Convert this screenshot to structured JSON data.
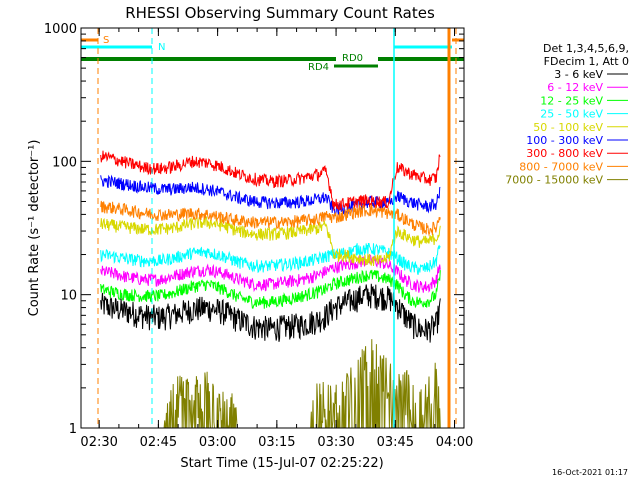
{
  "chart_data": {
    "type": "line",
    "title": "RHESSI Observing Summary Count Rates",
    "xlabel": "Start Time (15-Jul-07 02:25:22)",
    "ylabel": "Count Rate (s⁻¹ detector⁻¹)",
    "yscale": "log",
    "ylim": [
      1,
      1000
    ],
    "xlim_minutes": [
      0,
      97
    ],
    "x_tick_labels": [
      "02:30",
      "02:45",
      "03:00",
      "03:15",
      "03:30",
      "03:45",
      "04:00"
    ],
    "x_tick_minutes": [
      4.6,
      19.6,
      34.6,
      49.6,
      64.6,
      79.6,
      94.6
    ],
    "y_tick_labels": [
      "1",
      "10",
      "100",
      "1000"
    ],
    "y_tick_values": [
      1,
      10,
      100,
      1000
    ],
    "legend_title": [
      "Det 1,3,4,5,6,9,",
      "FDecim 1, Att 0"
    ],
    "legend_position": "right",
    "series": [
      {
        "name": "3 - 6 keV",
        "color": "#000000",
        "x": [
          5,
          8,
          12,
          16,
          20,
          24,
          28,
          32,
          36,
          40,
          44,
          48,
          52,
          56,
          60,
          62,
          64,
          66,
          68,
          70,
          72,
          74,
          76,
          78,
          80,
          82,
          84,
          86,
          88,
          90,
          91
        ],
        "values": [
          8.5,
          8,
          7.5,
          7,
          6.8,
          7.2,
          7.8,
          8,
          7.5,
          6.5,
          5.8,
          5.6,
          5.8,
          6,
          6.5,
          7,
          8,
          8.5,
          9,
          9.5,
          10,
          10,
          9.8,
          9.5,
          8.5,
          7,
          6,
          5.5,
          5.5,
          6,
          8
        ]
      },
      {
        "name": "6 - 12 keV",
        "color": "#ff00ff",
        "x": [
          5,
          8,
          12,
          16,
          20,
          24,
          28,
          32,
          36,
          40,
          44,
          48,
          52,
          56,
          60,
          62,
          64,
          66,
          68,
          70,
          72,
          74,
          76,
          78,
          80,
          82,
          84,
          86,
          88,
          90,
          91
        ],
        "values": [
          15,
          14.5,
          13.5,
          13,
          13,
          14,
          15,
          15.5,
          14.5,
          13,
          12,
          12,
          12.5,
          13,
          14,
          15,
          16,
          16.5,
          17,
          17.5,
          18,
          18,
          17.5,
          16.5,
          15,
          13,
          12,
          11.5,
          11.5,
          13,
          17
        ]
      },
      {
        "name": "12 - 25 keV",
        "color": "#00ff00",
        "x": [
          5,
          8,
          12,
          16,
          20,
          24,
          28,
          32,
          36,
          40,
          44,
          48,
          52,
          56,
          60,
          62,
          64,
          66,
          68,
          70,
          72,
          74,
          76,
          78,
          80,
          82,
          84,
          86,
          88,
          90,
          91
        ],
        "values": [
          11,
          10.5,
          10,
          9.8,
          9.8,
          10.5,
          11.5,
          12,
          11,
          9.5,
          8.8,
          8.8,
          9.2,
          9.8,
          10.5,
          11,
          12,
          12.5,
          13,
          13.5,
          14,
          14,
          13.5,
          13,
          12,
          10,
          9,
          8.8,
          9,
          10,
          14
        ]
      },
      {
        "name": "25 - 50 keV",
        "color": "#00ffff",
        "x": [
          5,
          8,
          12,
          16,
          20,
          24,
          28,
          32,
          36,
          40,
          44,
          48,
          52,
          56,
          60,
          62,
          64,
          66,
          68,
          70,
          72,
          74,
          76,
          78,
          80,
          82,
          84,
          86,
          88,
          90,
          91
        ],
        "values": [
          20,
          19.5,
          18.5,
          18,
          18,
          19,
          20.5,
          21,
          19.5,
          17.5,
          16.5,
          16.5,
          17,
          17.5,
          18.5,
          19.5,
          20,
          20.5,
          21,
          22,
          22,
          22,
          21.5,
          20.5,
          19,
          17,
          16,
          15.5,
          16,
          18,
          24
        ]
      },
      {
        "name": "50 - 100 keV",
        "color": "#d8d800",
        "x": [
          5,
          8,
          12,
          16,
          20,
          24,
          28,
          32,
          36,
          40,
          44,
          48,
          52,
          56,
          60,
          62,
          64,
          66,
          68,
          70,
          72,
          74,
          76,
          78,
          80,
          82,
          84,
          86,
          88,
          90,
          91
        ],
        "values": [
          34,
          33,
          32,
          31,
          31,
          32,
          34,
          35,
          33,
          30,
          28.5,
          28.5,
          29,
          30,
          31.5,
          33,
          20,
          20,
          19.5,
          19,
          18.5,
          18,
          18,
          19,
          30,
          28,
          26,
          25,
          25,
          27,
          30
        ]
      },
      {
        "name": "100 - 300 keV",
        "color": "#0000ff",
        "x": [
          5,
          8,
          12,
          16,
          20,
          24,
          28,
          32,
          36,
          40,
          44,
          48,
          52,
          56,
          60,
          62,
          64,
          66,
          68,
          70,
          72,
          74,
          76,
          78,
          80,
          82,
          84,
          86,
          88,
          90,
          91
        ],
        "values": [
          72,
          70,
          67,
          64,
          62,
          62,
          64,
          62,
          58,
          53,
          50,
          49,
          49,
          50,
          52,
          54,
          43,
          44,
          45,
          47,
          49,
          50,
          49,
          48,
          55,
          52,
          49,
          47,
          46,
          48,
          60
        ]
      },
      {
        "name": "300 - 800 keV",
        "color": "#ff0000",
        "x": [
          5,
          8,
          12,
          16,
          20,
          24,
          28,
          32,
          36,
          40,
          44,
          48,
          52,
          56,
          60,
          62,
          64,
          66,
          68,
          70,
          72,
          74,
          76,
          78,
          80,
          82,
          84,
          86,
          88,
          90,
          91
        ],
        "values": [
          110,
          105,
          97,
          90,
          88,
          92,
          100,
          98,
          90,
          80,
          74,
          71,
          72,
          75,
          80,
          84,
          47,
          48,
          49,
          50,
          51,
          50,
          50,
          49,
          90,
          85,
          80,
          76,
          73,
          75,
          115
        ]
      },
      {
        "name": "800 - 7000 keV",
        "color": "#ff8000",
        "x": [
          5,
          8,
          12,
          16,
          20,
          24,
          28,
          32,
          36,
          40,
          44,
          48,
          52,
          56,
          60,
          62,
          64,
          66,
          68,
          70,
          72,
          74,
          76,
          78,
          80,
          82,
          84,
          86,
          88,
          90,
          91
        ],
        "values": [
          46,
          45,
          43,
          41,
          40,
          40,
          41,
          40,
          38,
          36,
          35,
          35,
          35,
          36,
          37,
          39,
          38,
          39,
          41,
          42,
          43,
          43,
          42,
          41,
          40,
          37,
          34,
          32,
          31,
          32,
          40
        ]
      },
      {
        "name": "7000 - 15000 keV",
        "color": "#808000",
        "x": [
          5,
          8,
          12,
          16,
          20,
          22,
          24,
          28,
          32,
          36,
          40,
          44,
          48,
          52,
          56,
          58,
          60,
          64,
          68,
          70,
          72,
          74,
          76,
          78,
          80,
          82,
          84,
          86,
          88,
          90,
          91
        ],
        "values": [
          1,
          1,
          1,
          1,
          1,
          1.2,
          1.6,
          1.5,
          1.7,
          1.4,
          1,
          1,
          1,
          1,
          1,
          1,
          1.4,
          1.6,
          1.8,
          2.2,
          2.6,
          3.2,
          2.6,
          2,
          1.7,
          1.8,
          1.5,
          1.2,
          1.6,
          2,
          1.6
        ]
      }
    ],
    "orbit_flags": [
      {
        "label": "S",
        "color": "#ff8000"
      },
      {
        "label": "N",
        "color": "#00ffff"
      },
      {
        "label": "RD0",
        "color": "#008000"
      },
      {
        "label": "RD4",
        "color": "#008000"
      }
    ],
    "footer_date": "16-Oct-2021 01:17"
  }
}
